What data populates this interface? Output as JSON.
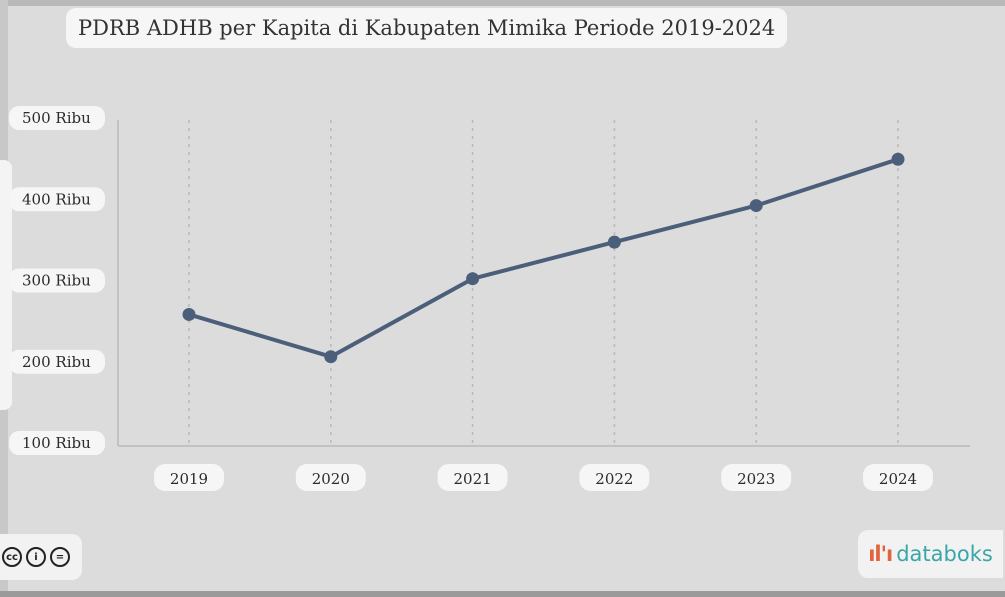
{
  "chart_data": {
    "type": "line",
    "title": "PDRB ADHB per Kapita di Kabupaten Mimika Periode 2019-2024",
    "x": [
      "2019",
      "2020",
      "2021",
      "2022",
      "2023",
      "2024"
    ],
    "series": [
      {
        "values": [
          257,
          205,
          301,
          346,
          391,
          448
        ]
      }
    ],
    "y_ticks": [
      {
        "value": 500,
        "label": "500 Ribu"
      },
      {
        "value": 400,
        "label": "400 Ribu"
      },
      {
        "value": 300,
        "label": "300 Ribu"
      },
      {
        "value": 200,
        "label": "200 Ribu"
      },
      {
        "value": 100,
        "label": "100 Ribu"
      }
    ],
    "ylim": [
      100,
      500
    ],
    "grid": "vertical dashed",
    "colors": {
      "line": "#4b5f7a"
    }
  },
  "footer": {
    "license_icons": [
      "cc-icon",
      "by-icon",
      "nd-icon"
    ],
    "license_glyphs": [
      "cc",
      "i",
      "="
    ],
    "brand_mark": "ıl'ı",
    "brand_name": "databoks"
  }
}
